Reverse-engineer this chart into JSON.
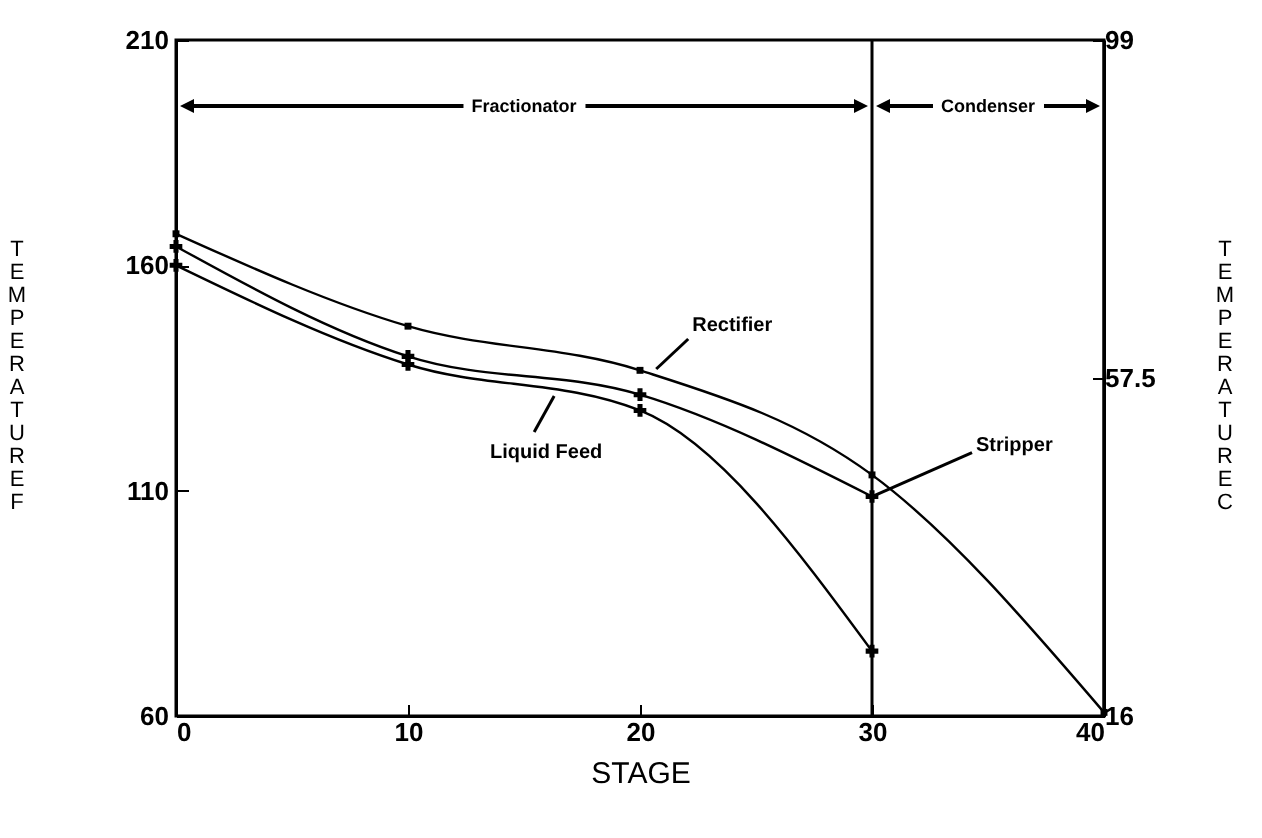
{
  "chart_data": {
    "type": "line",
    "xlabel": "STAGE",
    "ylabel": "TEMPERATURE F",
    "y2label": "TEMPERATURE C",
    "xlim": [
      0,
      40
    ],
    "xticks": [
      0,
      10,
      20,
      30,
      40
    ],
    "ylim": [
      60,
      210
    ],
    "yticks": [
      60,
      110,
      160,
      210
    ],
    "y2lim": [
      16,
      99
    ],
    "y2ticks": [
      16,
      57.5,
      99
    ],
    "grid": false,
    "line_style": "solid",
    "series": [
      {
        "color": "#000000",
        "marker": "square",
        "x": [
          0,
          10,
          20,
          30,
          40
        ],
        "values": [
          167,
          146.5,
          136.7,
          113.5,
          60.8
        ]
      },
      {
        "color": "#000000",
        "marker": "cross",
        "x": [
          0,
          10,
          20,
          30
        ],
        "values": [
          164.2,
          139.8,
          131.3,
          108.7
        ]
      },
      {
        "color": "#000000",
        "marker": "cross",
        "x": [
          0,
          10,
          20,
          30
        ],
        "values": [
          160,
          138,
          127.8,
          74.4
        ]
      }
    ],
    "ref_lines": [
      {
        "axis": "x",
        "value": 30,
        "color": "#000000"
      }
    ],
    "annotations": [
      "Fractionator",
      "Condenser",
      {
        "text": "Rectifier",
        "x": 20.7,
        "y": 137
      },
      {
        "text": "Liquid Feed",
        "x": 16.3,
        "y": 131
      },
      {
        "text": "Stripper",
        "x": 30,
        "y": 108.7
      }
    ]
  }
}
